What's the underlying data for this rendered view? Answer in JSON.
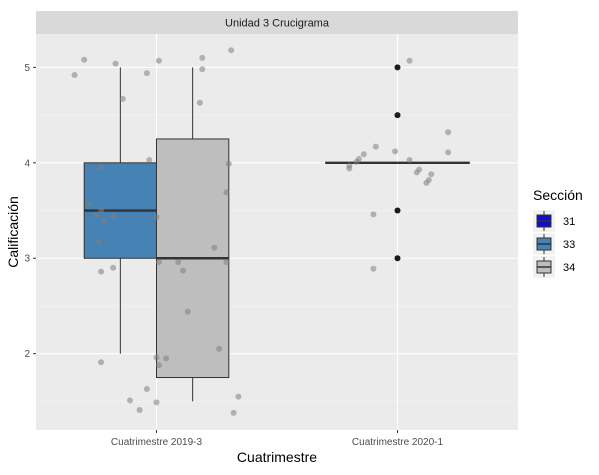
{
  "chart_data": {
    "type": "boxplot",
    "facet_label": "Unidad 3 Crucigrama",
    "xlabel": "Cuatrimestre",
    "ylabel": "Calificación",
    "categories": [
      "Cuatrimestre 2019-3",
      "Cuatrimestre 2020-1"
    ],
    "yticks": [
      2,
      3,
      4,
      5
    ],
    "ylim": [
      1.2,
      5.35
    ],
    "legend": {
      "title": "Sección",
      "position": "right",
      "items": [
        {
          "label": "31",
          "color": "#1010c8"
        },
        {
          "label": "33",
          "color": "#4682b4"
        },
        {
          "label": "34",
          "color": "#bebebe"
        }
      ]
    },
    "boxes": [
      {
        "category": "Cuatrimestre 2019-3",
        "section": "33",
        "min": 2.0,
        "q1": 3.0,
        "median": 3.5,
        "q3": 4.0,
        "max": 5.0,
        "outliers": []
      },
      {
        "category": "Cuatrimestre 2019-3",
        "section": "34",
        "min": 1.5,
        "q1": 1.75,
        "median": 3.0,
        "q3": 4.25,
        "max": 5.0,
        "outliers": []
      },
      {
        "category": "Cuatrimestre 2020-1",
        "section": "31",
        "min": 4.0,
        "q1": 4.0,
        "median": 4.0,
        "q3": 4.0,
        "max": 4.0,
        "outliers": [
          5.0,
          4.5,
          3.5,
          3.0
        ]
      }
    ],
    "points": [
      {
        "category": "Cuatrimestre 2019-3",
        "jitter": -0.34,
        "y": 4.92
      },
      {
        "category": "Cuatrimestre 2019-3",
        "jitter": -0.3,
        "y": 5.08
      },
      {
        "category": "Cuatrimestre 2019-3",
        "jitter": -0.17,
        "y": 5.04
      },
      {
        "category": "Cuatrimestre 2019-3",
        "jitter": -0.04,
        "y": 4.94
      },
      {
        "category": "Cuatrimestre 2019-3",
        "jitter": 0.01,
        "y": 5.07
      },
      {
        "category": "Cuatrimestre 2019-3",
        "jitter": 0.19,
        "y": 5.1
      },
      {
        "category": "Cuatrimestre 2019-3",
        "jitter": 0.31,
        "y": 5.18
      },
      {
        "category": "Cuatrimestre 2019-3",
        "jitter": 0.19,
        "y": 4.98
      },
      {
        "category": "Cuatrimestre 2019-3",
        "jitter": -0.14,
        "y": 4.67
      },
      {
        "category": "Cuatrimestre 2019-3",
        "jitter": 0.18,
        "y": 4.63
      },
      {
        "category": "Cuatrimestre 2019-3",
        "jitter": -0.03,
        "y": 4.03
      },
      {
        "category": "Cuatrimestre 2019-3",
        "jitter": 0.3,
        "y": 3.99
      },
      {
        "category": "Cuatrimestre 2019-3",
        "jitter": -0.23,
        "y": 3.95
      },
      {
        "category": "Cuatrimestre 2019-3",
        "jitter": 0.29,
        "y": 3.69
      },
      {
        "category": "Cuatrimestre 2019-3",
        "jitter": -0.28,
        "y": 3.56
      },
      {
        "category": "Cuatrimestre 2019-3",
        "jitter": -0.23,
        "y": 3.5
      },
      {
        "category": "Cuatrimestre 2019-3",
        "jitter": -0.25,
        "y": 3.45
      },
      {
        "category": "Cuatrimestre 2019-3",
        "jitter": -0.18,
        "y": 3.44
      },
      {
        "category": "Cuatrimestre 2019-3",
        "jitter": -0.22,
        "y": 3.4
      },
      {
        "category": "Cuatrimestre 2019-3",
        "jitter": 0.0,
        "y": 3.43
      },
      {
        "category": "Cuatrimestre 2019-3",
        "jitter": -0.24,
        "y": 3.17
      },
      {
        "category": "Cuatrimestre 2019-3",
        "jitter": 0.24,
        "y": 3.11
      },
      {
        "category": "Cuatrimestre 2019-3",
        "jitter": 0.01,
        "y": 2.96
      },
      {
        "category": "Cuatrimestre 2019-3",
        "jitter": 0.09,
        "y": 2.96
      },
      {
        "category": "Cuatrimestre 2019-3",
        "jitter": 0.29,
        "y": 2.96
      },
      {
        "category": "Cuatrimestre 2019-3",
        "jitter": -0.18,
        "y": 2.9
      },
      {
        "category": "Cuatrimestre 2019-3",
        "jitter": -0.23,
        "y": 2.86
      },
      {
        "category": "Cuatrimestre 2019-3",
        "jitter": 0.11,
        "y": 2.87
      },
      {
        "category": "Cuatrimestre 2019-3",
        "jitter": 0.13,
        "y": 2.44
      },
      {
        "category": "Cuatrimestre 2019-3",
        "jitter": 0.26,
        "y": 2.05
      },
      {
        "category": "Cuatrimestre 2019-3",
        "jitter": 0.0,
        "y": 1.96
      },
      {
        "category": "Cuatrimestre 2019-3",
        "jitter": 0.04,
        "y": 1.95
      },
      {
        "category": "Cuatrimestre 2019-3",
        "jitter": 0.01,
        "y": 1.88
      },
      {
        "category": "Cuatrimestre 2019-3",
        "jitter": -0.23,
        "y": 1.91
      },
      {
        "category": "Cuatrimestre 2019-3",
        "jitter": -0.04,
        "y": 1.63
      },
      {
        "category": "Cuatrimestre 2019-3",
        "jitter": 0.34,
        "y": 1.55
      },
      {
        "category": "Cuatrimestre 2019-3",
        "jitter": -0.11,
        "y": 1.51
      },
      {
        "category": "Cuatrimestre 2019-3",
        "jitter": 0.0,
        "y": 1.49
      },
      {
        "category": "Cuatrimestre 2019-3",
        "jitter": -0.07,
        "y": 1.41
      },
      {
        "category": "Cuatrimestre 2019-3",
        "jitter": 0.32,
        "y": 1.38
      },
      {
        "category": "Cuatrimestre 2020-1",
        "jitter": 0.05,
        "y": 5.07
      },
      {
        "category": "Cuatrimestre 2020-1",
        "jitter": 0.21,
        "y": 4.32
      },
      {
        "category": "Cuatrimestre 2020-1",
        "jitter": -0.09,
        "y": 4.17
      },
      {
        "category": "Cuatrimestre 2020-1",
        "jitter": -0.01,
        "y": 4.12
      },
      {
        "category": "Cuatrimestre 2020-1",
        "jitter": 0.21,
        "y": 4.11
      },
      {
        "category": "Cuatrimestre 2020-1",
        "jitter": -0.14,
        "y": 4.09
      },
      {
        "category": "Cuatrimestre 2020-1",
        "jitter": -0.16,
        "y": 4.04
      },
      {
        "category": "Cuatrimestre 2020-1",
        "jitter": 0.05,
        "y": 4.03
      },
      {
        "category": "Cuatrimestre 2020-1",
        "jitter": -0.17,
        "y": 4.01
      },
      {
        "category": "Cuatrimestre 2020-1",
        "jitter": -0.2,
        "y": 3.97
      },
      {
        "category": "Cuatrimestre 2020-1",
        "jitter": -0.2,
        "y": 3.94
      },
      {
        "category": "Cuatrimestre 2020-1",
        "jitter": 0.09,
        "y": 3.93
      },
      {
        "category": "Cuatrimestre 2020-1",
        "jitter": 0.08,
        "y": 3.9
      },
      {
        "category": "Cuatrimestre 2020-1",
        "jitter": 0.14,
        "y": 3.88
      },
      {
        "category": "Cuatrimestre 2020-1",
        "jitter": 0.13,
        "y": 3.82
      },
      {
        "category": "Cuatrimestre 2020-1",
        "jitter": 0.12,
        "y": 3.79
      },
      {
        "category": "Cuatrimestre 2020-1",
        "jitter": -0.1,
        "y": 3.46
      },
      {
        "category": "Cuatrimestre 2020-1",
        "jitter": -0.1,
        "y": 2.89
      }
    ]
  }
}
